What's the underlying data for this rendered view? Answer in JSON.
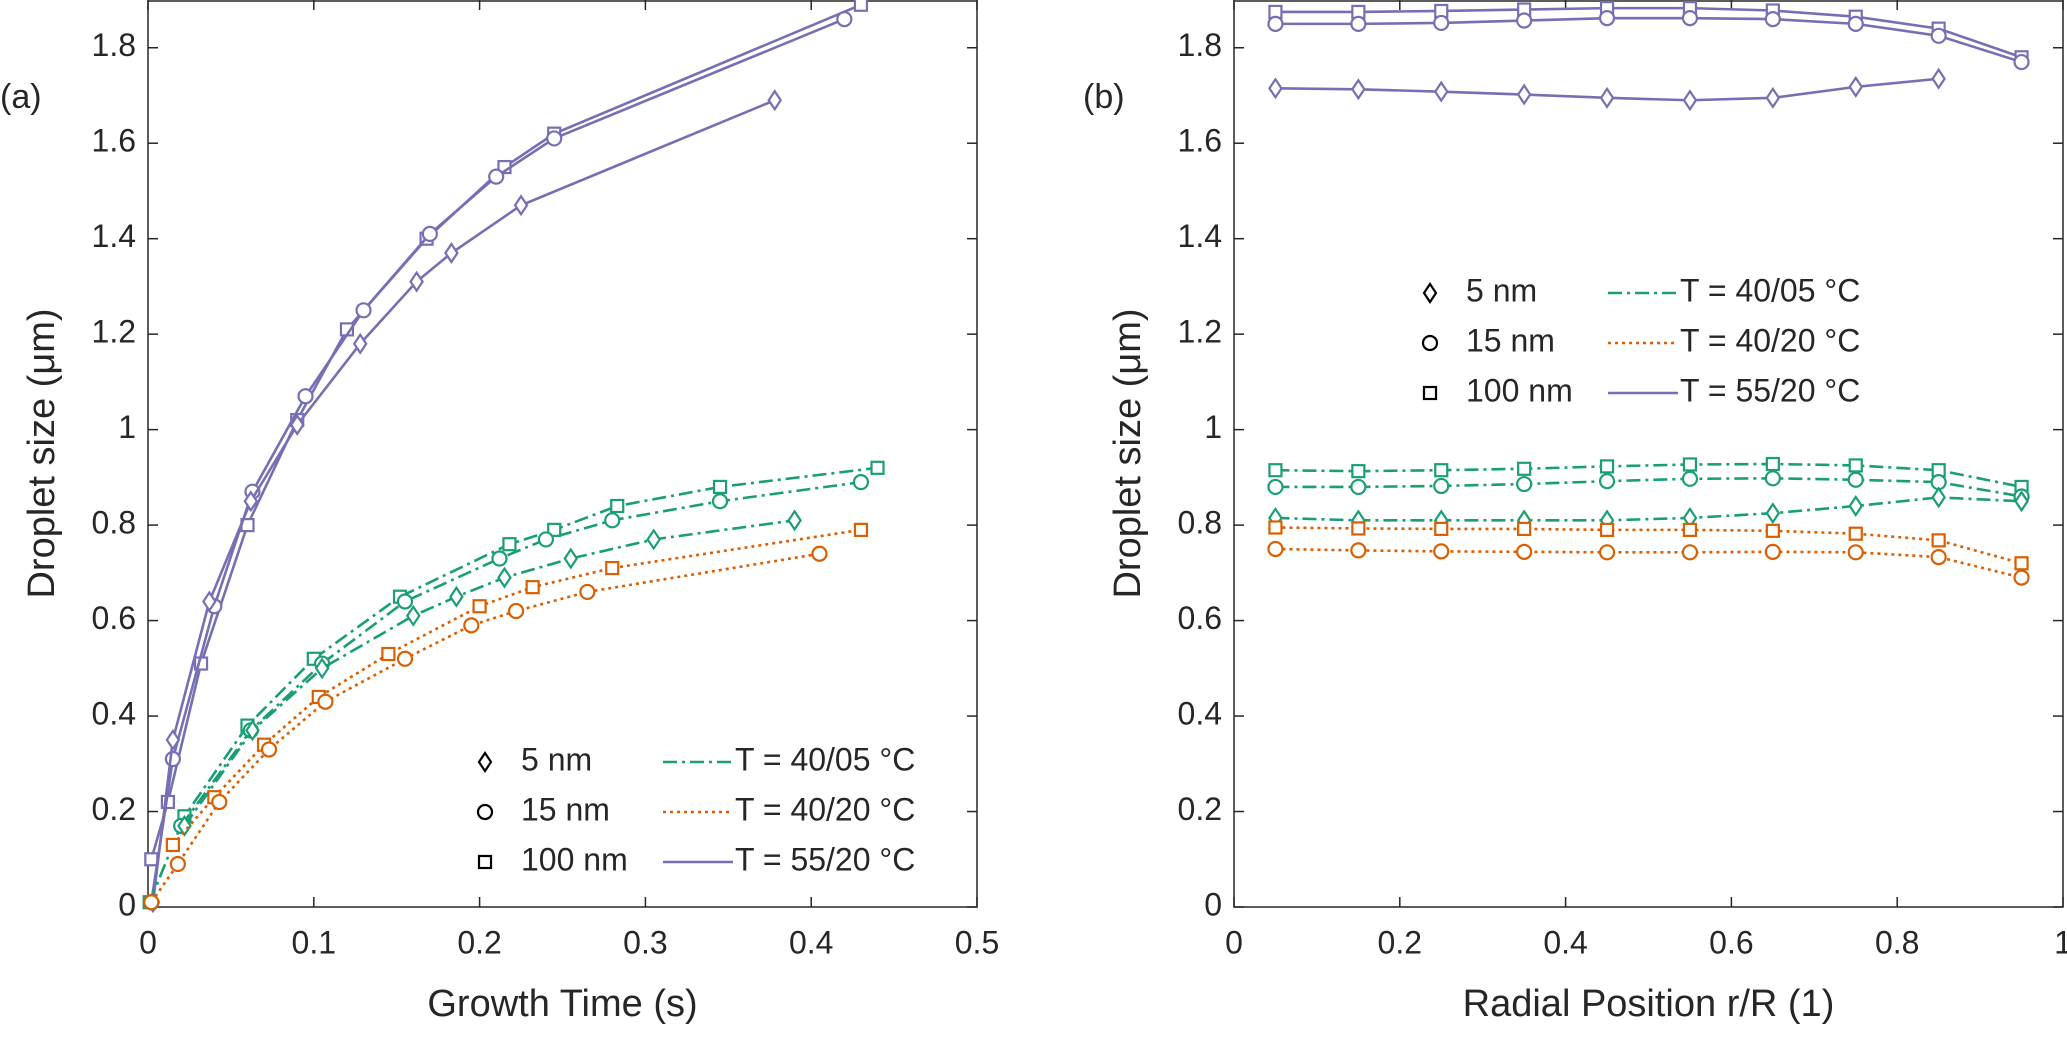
{
  "chart_data": [
    {
      "type": "line",
      "panel_label": "(a)",
      "x_label": "Growth Time (s)",
      "y_label": "Droplet size (μm)",
      "xlim": [
        0,
        0.5
      ],
      "xticks": [
        0,
        0.1,
        0.2,
        0.3,
        0.4,
        0.5
      ],
      "ylim": [
        0,
        1.9
      ],
      "yticks": [
        0,
        0.2,
        0.4,
        0.6,
        0.8,
        1,
        1.2,
        1.4,
        1.6,
        1.8
      ],
      "legend": "lower right",
      "marker_legend": [
        {
          "name": "5 nm",
          "marker": "diamond"
        },
        {
          "name": "15 nm",
          "marker": "circle"
        },
        {
          "name": "100 nm",
          "marker": "square"
        }
      ],
      "line_legend": [
        {
          "name": "T = 40/05 °C",
          "color": "#1a9e77",
          "dash": "dashdot"
        },
        {
          "name": "T = 40/20 °C",
          "color": "#d95f02",
          "dash": "dotted"
        },
        {
          "name": "T = 55/20 °C",
          "color": "#7570b3",
          "dash": "solid"
        }
      ],
      "series": [
        {
          "marker": "square",
          "color": "#7570b3",
          "dash": "solid",
          "x": [
            0.002,
            0.012,
            0.032,
            0.06,
            0.09,
            0.12,
            0.168,
            0.215,
            0.245,
            0.43
          ],
          "values": [
            0.1,
            0.22,
            0.51,
            0.8,
            1.02,
            1.21,
            1.4,
            1.55,
            1.62,
            1.89
          ]
        },
        {
          "marker": "circle",
          "color": "#7570b3",
          "dash": "solid",
          "x": [
            0.002,
            0.015,
            0.04,
            0.063,
            0.095,
            0.13,
            0.17,
            0.21,
            0.245,
            0.42
          ],
          "values": [
            0.01,
            0.31,
            0.63,
            0.87,
            1.07,
            1.25,
            1.41,
            1.53,
            1.61,
            1.86
          ]
        },
        {
          "marker": "diamond",
          "color": "#7570b3",
          "dash": "solid",
          "x": [
            0.003,
            0.015,
            0.037,
            0.062,
            0.09,
            0.128,
            0.162,
            0.183,
            0.225,
            0.378
          ],
          "values": [
            0.01,
            0.35,
            0.64,
            0.85,
            1.01,
            1.18,
            1.31,
            1.37,
            1.47,
            1.69
          ]
        },
        {
          "marker": "square",
          "color": "#1a9e77",
          "dash": "dashdot",
          "x": [
            0.001,
            0.022,
            0.06,
            0.1,
            0.152,
            0.218,
            0.245,
            0.283,
            0.345,
            0.44
          ],
          "values": [
            0.01,
            0.19,
            0.38,
            0.52,
            0.65,
            0.76,
            0.79,
            0.84,
            0.88,
            0.92
          ]
        },
        {
          "marker": "circle",
          "color": "#1a9e77",
          "dash": "dashdot",
          "x": [
            0.02,
            0.062,
            0.105,
            0.155,
            0.212,
            0.24,
            0.28,
            0.345,
            0.43
          ],
          "values": [
            0.17,
            0.37,
            0.51,
            0.64,
            0.73,
            0.77,
            0.81,
            0.85,
            0.89
          ]
        },
        {
          "marker": "diamond",
          "color": "#1a9e77",
          "dash": "dashdot",
          "x": [
            0.022,
            0.063,
            0.105,
            0.16,
            0.186,
            0.215,
            0.255,
            0.305,
            0.39
          ],
          "values": [
            0.17,
            0.37,
            0.5,
            0.61,
            0.65,
            0.69,
            0.73,
            0.77,
            0.81
          ]
        },
        {
          "marker": "square",
          "color": "#d95f02",
          "dash": "dotted",
          "x": [
            0.015,
            0.04,
            0.07,
            0.103,
            0.145,
            0.2,
            0.232,
            0.28,
            0.43
          ],
          "values": [
            0.13,
            0.23,
            0.34,
            0.44,
            0.53,
            0.63,
            0.67,
            0.71,
            0.79
          ]
        },
        {
          "marker": "circle",
          "color": "#d95f02",
          "dash": "dotted",
          "x": [
            0.002,
            0.018,
            0.043,
            0.073,
            0.107,
            0.155,
            0.195,
            0.222,
            0.265,
            0.405
          ],
          "values": [
            0.01,
            0.09,
            0.22,
            0.33,
            0.43,
            0.52,
            0.59,
            0.62,
            0.66,
            0.74
          ]
        }
      ]
    },
    {
      "type": "line",
      "panel_label": "(b)",
      "x_label": "Radial Position r/R (1)",
      "y_label": "Droplet size (μm)",
      "xlim": [
        0,
        1
      ],
      "xticks": [
        0,
        0.2,
        0.4,
        0.6,
        0.8,
        1
      ],
      "ylim": [
        0,
        1.9
      ],
      "yticks": [
        0,
        0.2,
        0.4,
        0.6,
        0.8,
        1,
        1.2,
        1.4,
        1.6,
        1.8
      ],
      "legend": "center",
      "marker_legend": [
        {
          "name": "5 nm",
          "marker": "diamond"
        },
        {
          "name": "15 nm",
          "marker": "circle"
        },
        {
          "name": "100 nm",
          "marker": "square"
        }
      ],
      "line_legend": [
        {
          "name": "T = 40/05 °C",
          "color": "#1a9e77",
          "dash": "dashdot"
        },
        {
          "name": "T = 40/20 °C",
          "color": "#d95f02",
          "dash": "dotted"
        },
        {
          "name": "T = 55/20 °C",
          "color": "#7570b3",
          "dash": "solid"
        }
      ],
      "series": [
        {
          "marker": "square",
          "color": "#7570b3",
          "dash": "solid",
          "x": [
            0.05,
            0.15,
            0.25,
            0.35,
            0.45,
            0.55,
            0.65,
            0.75,
            0.85,
            0.95
          ],
          "values": [
            1.875,
            1.875,
            1.877,
            1.88,
            1.883,
            1.883,
            1.878,
            1.865,
            1.84,
            1.78
          ]
        },
        {
          "marker": "circle",
          "color": "#7570b3",
          "dash": "solid",
          "x": [
            0.05,
            0.15,
            0.25,
            0.35,
            0.45,
            0.55,
            0.65,
            0.75,
            0.85,
            0.95
          ],
          "values": [
            1.85,
            1.85,
            1.852,
            1.857,
            1.862,
            1.862,
            1.86,
            1.85,
            1.825,
            1.77
          ]
        },
        {
          "marker": "diamond",
          "color": "#7570b3",
          "dash": "solid",
          "x": [
            0.05,
            0.15,
            0.25,
            0.35,
            0.45,
            0.55,
            0.65,
            0.75,
            0.85
          ],
          "values": [
            1.715,
            1.713,
            1.708,
            1.702,
            1.695,
            1.69,
            1.695,
            1.718,
            1.735
          ]
        },
        {
          "marker": "square",
          "color": "#1a9e77",
          "dash": "dashdot",
          "x": [
            0.05,
            0.15,
            0.25,
            0.35,
            0.45,
            0.55,
            0.65,
            0.75,
            0.85,
            0.95
          ],
          "values": [
            0.915,
            0.913,
            0.915,
            0.918,
            0.923,
            0.927,
            0.928,
            0.925,
            0.915,
            0.88
          ]
        },
        {
          "marker": "circle",
          "color": "#1a9e77",
          "dash": "dashdot",
          "x": [
            0.05,
            0.15,
            0.25,
            0.35,
            0.45,
            0.55,
            0.65,
            0.75,
            0.85,
            0.95
          ],
          "values": [
            0.88,
            0.88,
            0.882,
            0.886,
            0.892,
            0.897,
            0.898,
            0.895,
            0.89,
            0.86
          ]
        },
        {
          "marker": "diamond",
          "color": "#1a9e77",
          "dash": "dashdot",
          "x": [
            0.05,
            0.15,
            0.25,
            0.35,
            0.45,
            0.55,
            0.65,
            0.75,
            0.85,
            0.95
          ],
          "values": [
            0.815,
            0.81,
            0.81,
            0.81,
            0.81,
            0.815,
            0.825,
            0.84,
            0.858,
            0.85
          ]
        },
        {
          "marker": "square",
          "color": "#d95f02",
          "dash": "dotted",
          "x": [
            0.05,
            0.15,
            0.25,
            0.35,
            0.45,
            0.55,
            0.65,
            0.75,
            0.85,
            0.95
          ],
          "values": [
            0.795,
            0.793,
            0.792,
            0.792,
            0.79,
            0.79,
            0.788,
            0.782,
            0.768,
            0.72
          ]
        },
        {
          "marker": "circle",
          "color": "#d95f02",
          "dash": "dotted",
          "x": [
            0.05,
            0.15,
            0.25,
            0.35,
            0.45,
            0.55,
            0.65,
            0.75,
            0.85,
            0.95
          ],
          "values": [
            0.75,
            0.747,
            0.745,
            0.744,
            0.743,
            0.743,
            0.744,
            0.743,
            0.733,
            0.69
          ]
        }
      ]
    }
  ]
}
